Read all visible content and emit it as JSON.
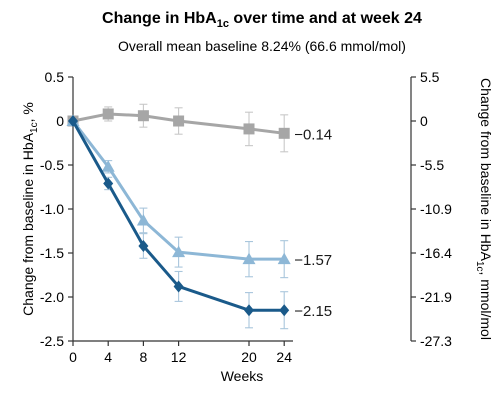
{
  "chart_data": {
    "type": "line",
    "title": {
      "prefix": "Change in HbA",
      "sub": "1c",
      "suffix": " over time and at week 24"
    },
    "subtitle": "Overall mean baseline 8.24% (66.6 mmol/mol)",
    "xlabel": "Weeks",
    "ylabel_left": {
      "prefix": "Change from baseline in HbA",
      "sub": "1c",
      "suffix": ", %"
    },
    "ylabel_right": {
      "prefix": "Change from baseline in HbA",
      "sub": "1c",
      "suffix": ", mmol/mol"
    },
    "x_ticks": [
      "0",
      "4",
      "8",
      "12",
      "20",
      "24"
    ],
    "x_tick_values": [
      0,
      4,
      8,
      12,
      20,
      24
    ],
    "xlim": [
      0,
      25
    ],
    "ylim": [
      -2.5,
      0.5
    ],
    "y_ticks": [
      "0.5",
      "0",
      "-0.5",
      "-1.0",
      "-1.5",
      "-2.0",
      "-2.5"
    ],
    "y_tick_values": [
      0.5,
      0,
      -0.5,
      -1.0,
      -1.5,
      -2.0,
      -2.5
    ],
    "y_right_ticks": [
      "5.5",
      "0",
      "-5.5",
      "-10.9",
      "-16.4",
      "-21.9",
      "-27.3"
    ],
    "grid": false,
    "series": [
      {
        "marker": "square",
        "color": "#a6a6a6",
        "x": [
          0,
          4,
          8,
          12,
          20,
          24
        ],
        "y": [
          0,
          0.08,
          0.06,
          0.0,
          -0.09,
          -0.14
        ],
        "err": [
          0,
          0.08,
          0.13,
          0.15,
          0.19,
          0.21
        ],
        "end_label": "−0.14"
      },
      {
        "marker": "triangle",
        "color": "#8db7d6",
        "x": [
          0,
          4,
          8,
          12,
          20,
          24
        ],
        "y": [
          0,
          -0.52,
          -1.13,
          -1.49,
          -1.57,
          -1.57
        ],
        "err": [
          0,
          0.07,
          0.14,
          0.17,
          0.2,
          0.21
        ],
        "end_label": "−1.57"
      },
      {
        "marker": "diamond",
        "color": "#1a5a8a",
        "x": [
          0,
          4,
          8,
          12,
          20,
          24
        ],
        "y": [
          0,
          -0.71,
          -1.42,
          -1.88,
          -2.15,
          -2.15
        ],
        "err": [
          0,
          0.07,
          0.14,
          0.17,
          0.2,
          0.21
        ],
        "end_label": "−2.15"
      }
    ]
  }
}
